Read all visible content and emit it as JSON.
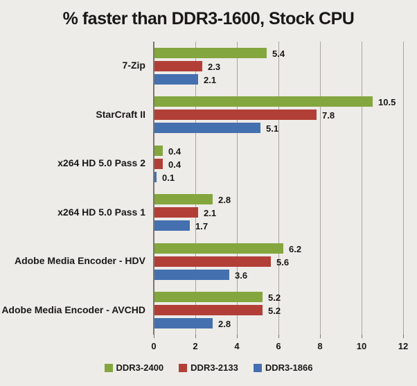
{
  "title": "% faster than DDR3-1600, Stock CPU",
  "chart_data": {
    "type": "bar",
    "orientation": "horizontal",
    "title": "% faster than DDR3-1600, Stock CPU",
    "categories": [
      "7-Zip",
      "StarCraft II",
      "x264 HD 5.0 Pass 2",
      "x264 HD 5.0 Pass 1",
      "Adobe Media Encoder - HDV",
      "Adobe Media Encoder - AVCHD"
    ],
    "series": [
      {
        "name": "DDR3-2400",
        "color": "#84a63e",
        "values": [
          5.4,
          10.5,
          0.4,
          2.8,
          6.2,
          5.2
        ]
      },
      {
        "name": "DDR3-2133",
        "color": "#b23f37",
        "values": [
          2.3,
          7.8,
          0.4,
          2.1,
          5.6,
          5.2
        ]
      },
      {
        "name": "DDR3-1866",
        "color": "#4470b0",
        "values": [
          2.1,
          5.1,
          0.1,
          1.7,
          3.6,
          2.8
        ]
      }
    ],
    "xlim": [
      0,
      12
    ],
    "x_ticks": [
      0,
      2,
      4,
      6,
      8,
      10,
      12
    ],
    "grid": "vertical",
    "legend_position": "bottom",
    "value_labels": "one-decimal labels to the right of each bar"
  },
  "colors": {
    "background": "#eeece8",
    "gridline": "#a8a49d",
    "axis_line": "#7a766f",
    "text": "#1a1817"
  }
}
